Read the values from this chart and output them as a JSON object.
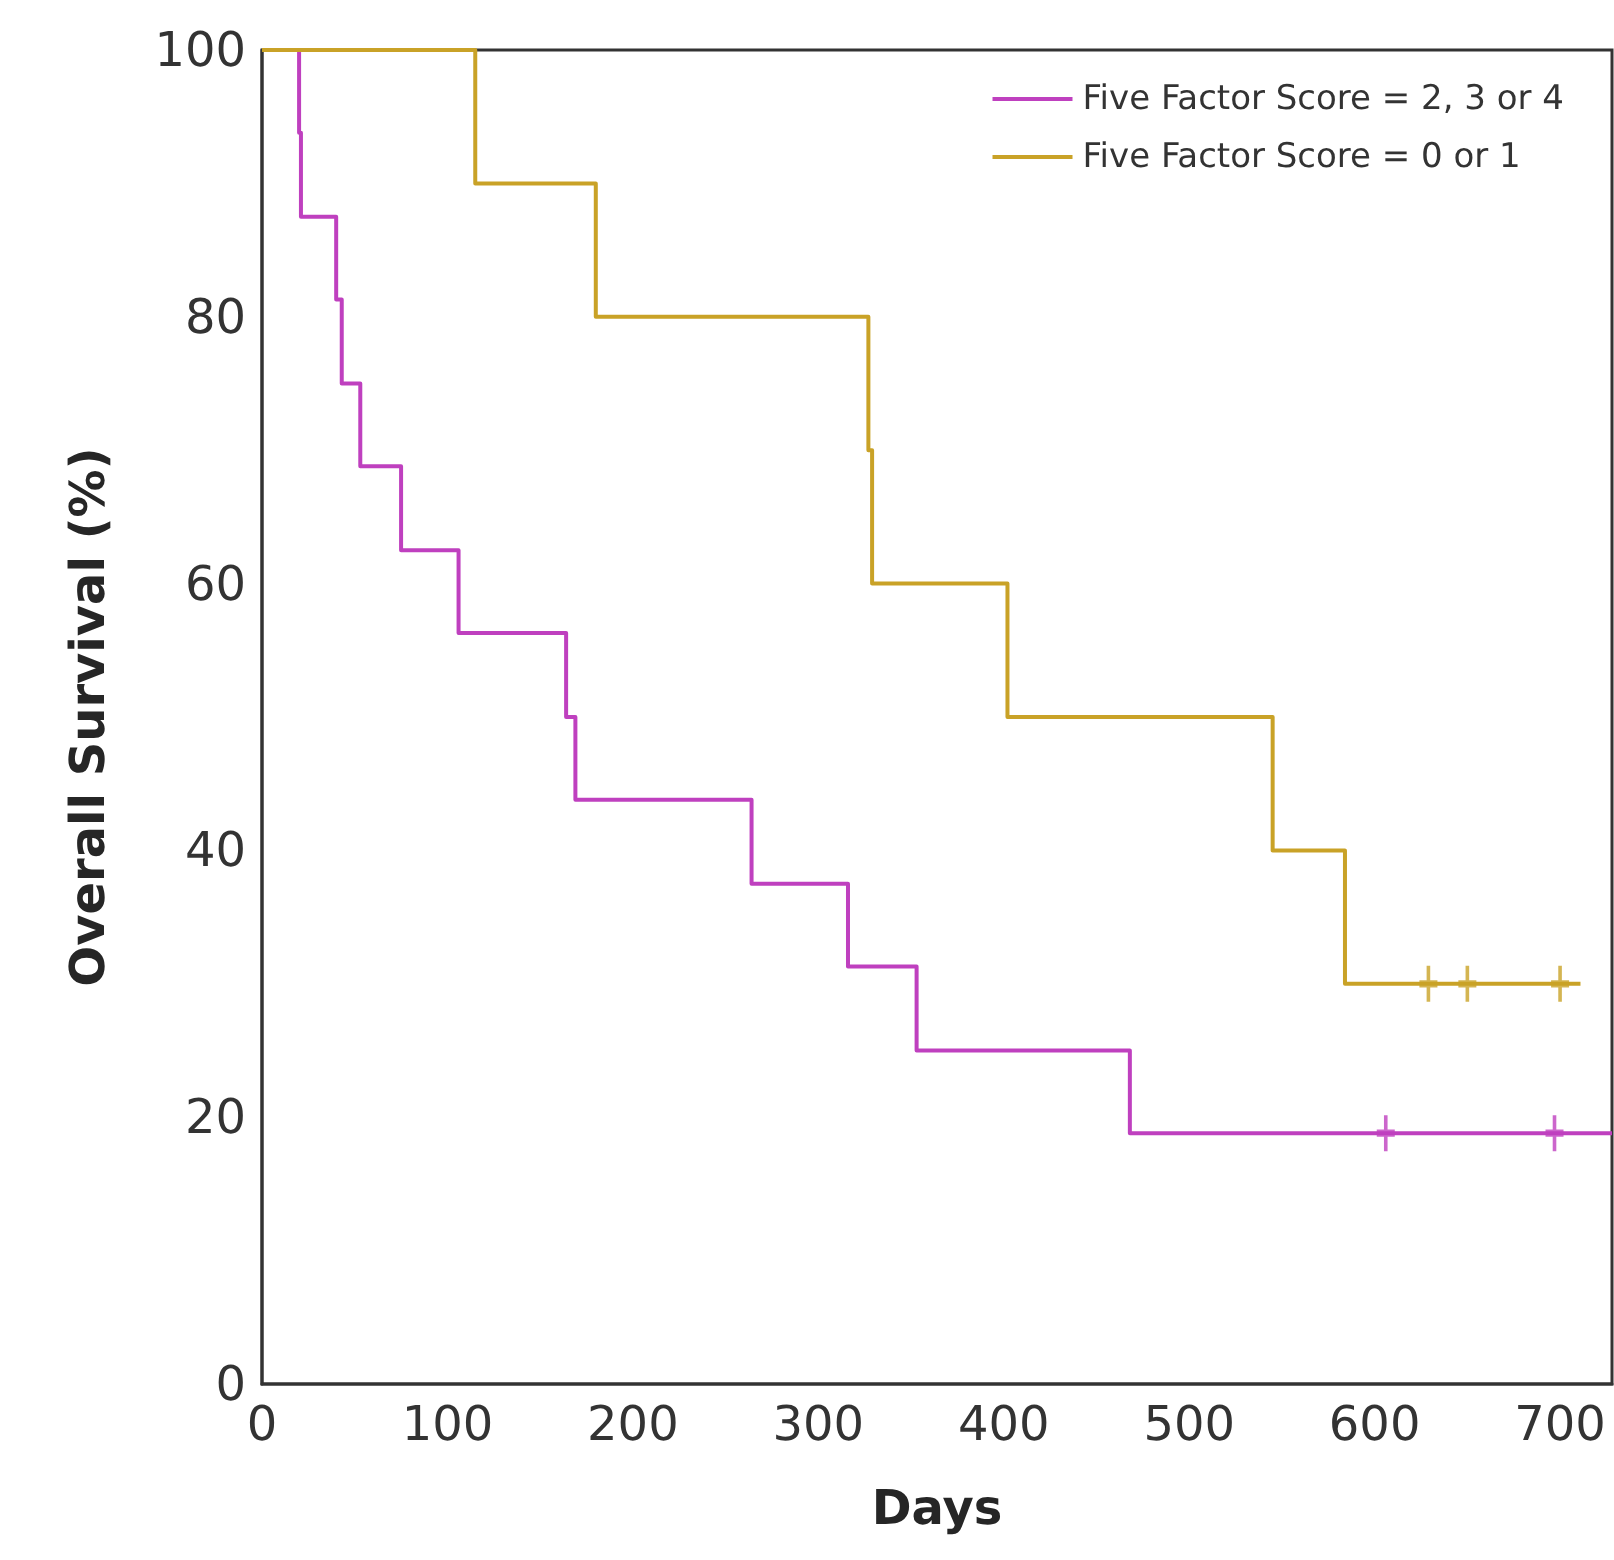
{
  "chart_data": {
    "type": "step",
    "xlabel": "Days",
    "ylabel": "Overall Survival (%)",
    "xlim": [
      0,
      728
    ],
    "xticks": [
      0,
      100,
      200,
      300,
      400,
      500,
      600,
      700
    ],
    "ylim": [
      0,
      100
    ],
    "yticks": [
      0,
      20,
      40,
      60,
      80,
      100
    ],
    "grid": false,
    "legend": "top right",
    "series": [
      {
        "name": "Five Factor Score = 2, 3 or 4",
        "color": "#bf40bf",
        "x": [
          0,
          20,
          21,
          40,
          43,
          53,
          75,
          106,
          164,
          169,
          264,
          316,
          353,
          468,
          728
        ],
        "values": [
          100,
          93.8,
          87.5,
          81.3,
          75,
          68.8,
          62.5,
          56.3,
          50,
          43.8,
          37.5,
          31.3,
          25,
          18.8,
          18.8
        ]
      },
      {
        "name": "Five Factor Score = 0 or 1",
        "color": "#c9a227",
        "x": [
          0,
          115,
          180,
          327,
          329,
          402,
          545,
          584,
          711
        ],
        "values": [
          100,
          90,
          80,
          70,
          60,
          50,
          40,
          30,
          30
        ]
      },
      {
        "type": "scatter",
        "marker": "cross",
        "color": "#bf40bf",
        "x": [
          606,
          697
        ],
        "values": [
          18.8,
          18.8
        ]
      },
      {
        "type": "scatter",
        "marker": "cross",
        "color": "#c9a227",
        "x": [
          629,
          650,
          700
        ],
        "values": [
          30,
          30,
          30
        ]
      }
    ]
  }
}
